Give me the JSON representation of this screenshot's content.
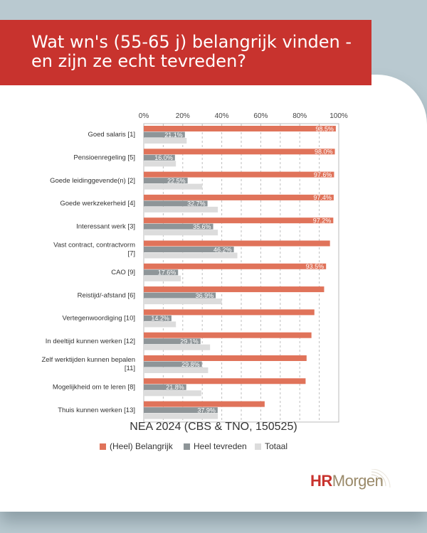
{
  "header": {
    "title": "Wat wn's (55-65 j) belangrijk vinden - en zijn ze echt tevreden?"
  },
  "chart_data": {
    "type": "bar",
    "orientation": "horizontal",
    "title": "NEA 2024 (CBS & TNO, 150525)",
    "categories": [
      "Goed salaris [1]",
      "Pensioenregeling [5]",
      "Goede leidinggevende(n) [2]",
      "Goede werkzekerheid [4]",
      "Interessant werk [3]",
      "Vast contract, contractvorm [7]",
      "CAO [9]",
      "Reistijd/-afstand [6]",
      "Vertegenwoordiging [10]",
      "In deeltijd kunnen werken [12]",
      "Zelf werktijden kunnen bepalen [11]",
      "Mogelijkheid om te leren [8]",
      "Thuis kunnen werken [13]"
    ],
    "series": [
      {
        "name": "(Heel) Belangrijk",
        "color": "#e0735a",
        "values": [
          98.5,
          98.0,
          97.6,
          97.4,
          97.2,
          95.5,
          93.5,
          92.5,
          87.5,
          86.0,
          83.5,
          83.0,
          62.0
        ],
        "labels": [
          "98.5%",
          "98.0%",
          "97.6%",
          "97.4%",
          "97.2%",
          "",
          "93.5%",
          "",
          "",
          "",
          "",
          "",
          ""
        ]
      },
      {
        "name": "Heel tevreden",
        "color": "#8e9598",
        "values": [
          21.1,
          16.0,
          22.5,
          32.7,
          35.6,
          46.2,
          17.6,
          36.9,
          14.2,
          29.1,
          29.8,
          21.8,
          37.9
        ],
        "labels": [
          "21.1%",
          "16.0%",
          "22.5%",
          "32.7%",
          "35.6%",
          "46.2%",
          "17.6%",
          "36.9%",
          "14.2%",
          "29.1%",
          "29.8%",
          "21.8%",
          "37.9%"
        ]
      },
      {
        "name": "Totaal",
        "color": "#dcdcdc",
        "values": [
          22.0,
          16.5,
          30.0,
          38.0,
          38.0,
          48.0,
          19.0,
          40.0,
          16.5,
          34.0,
          33.0,
          29.5,
          38.0
        ]
      }
    ],
    "xlim": [
      0,
      100
    ],
    "xticks": [
      "0%",
      "20%",
      "40%",
      "60%",
      "80%",
      "100%"
    ],
    "grid": true,
    "legend_position": "bottom"
  },
  "brand": {
    "hr": "HR",
    "morgen": "Morgen"
  }
}
